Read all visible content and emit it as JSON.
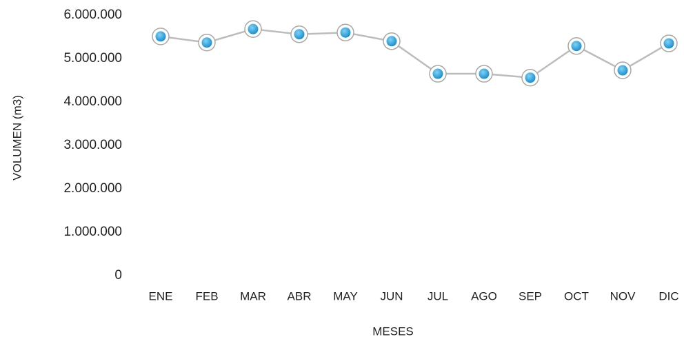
{
  "chart_data": {
    "type": "line",
    "x_label": "MESES",
    "y_label": "VOLUMEN  (m3)",
    "categories": [
      "ENE",
      "FEB",
      "MAR",
      "ABR",
      "MAY",
      "JUN",
      "JUL",
      "AGO",
      "SEP",
      "OCT",
      "NOV",
      "DIC"
    ],
    "series": [
      {
        "name": "Volumen",
        "color": "#29a3dd",
        "values": [
          5510000,
          5370000,
          5680000,
          5560000,
          5600000,
          5400000,
          4650000,
          4650000,
          4560000,
          5290000,
          4730000,
          5350000
        ]
      }
    ],
    "ylim": [
      0,
      6000000
    ],
    "yticks": [
      {
        "value": 0,
        "label": "0"
      },
      {
        "value": 1000000,
        "label": "1.000.000"
      },
      {
        "value": 2000000,
        "label": "2.000.000"
      },
      {
        "value": 3000000,
        "label": "3.000.000"
      },
      {
        "value": 4000000,
        "label": "4.000.000"
      },
      {
        "value": 5000000,
        "label": "5.000.000"
      },
      {
        "value": 6000000,
        "label": "6.000.000"
      }
    ],
    "line_color": "#bcbcbc",
    "grid": false
  }
}
